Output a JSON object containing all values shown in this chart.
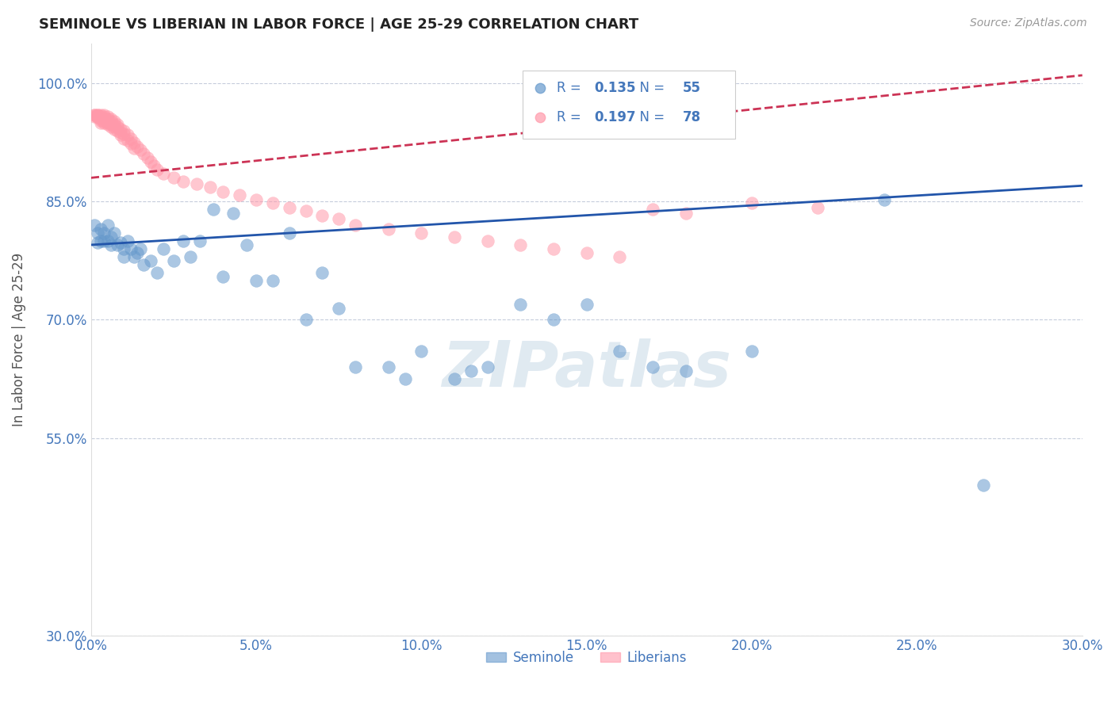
{
  "title": "SEMINOLE VS LIBERIAN IN LABOR FORCE | AGE 25-29 CORRELATION CHART",
  "source": "Source: ZipAtlas.com",
  "ylabel": "In Labor Force | Age 25-29",
  "xlim": [
    0.0,
    0.3
  ],
  "ylim": [
    0.3,
    1.05
  ],
  "xticks": [
    0.0,
    0.05,
    0.1,
    0.15,
    0.2,
    0.25,
    0.3
  ],
  "xticklabels": [
    "0.0%",
    "5.0%",
    "10.0%",
    "15.0%",
    "20.0%",
    "25.0%",
    "30.0%"
  ],
  "yticks": [
    0.3,
    0.55,
    0.7,
    0.85,
    1.0
  ],
  "yticklabels": [
    "30.0%",
    "55.0%",
    "70.0%",
    "85.0%",
    "100.0%"
  ],
  "seminole_color": "#6699cc",
  "liberian_color": "#ff99aa",
  "seminole_R": 0.135,
  "seminole_N": 55,
  "liberian_R": 0.197,
  "liberian_N": 78,
  "trend_blue_color": "#2255aa",
  "trend_pink_color": "#cc3355",
  "watermark_color": "#ccdce8",
  "grid_color": "#c0c8d8",
  "axis_color": "#4477bb",
  "title_color": "#222222",
  "ylabel_color": "#555555",
  "seminole_x": [
    0.001,
    0.002,
    0.002,
    0.003,
    0.003,
    0.004,
    0.004,
    0.005,
    0.005,
    0.006,
    0.006,
    0.007,
    0.008,
    0.009,
    0.01,
    0.01,
    0.011,
    0.012,
    0.013,
    0.014,
    0.015,
    0.016,
    0.018,
    0.02,
    0.022,
    0.025,
    0.028,
    0.03,
    0.033,
    0.037,
    0.04,
    0.043,
    0.047,
    0.05,
    0.055,
    0.06,
    0.065,
    0.07,
    0.075,
    0.08,
    0.09,
    0.095,
    0.1,
    0.11,
    0.115,
    0.12,
    0.13,
    0.14,
    0.15,
    0.16,
    0.17,
    0.18,
    0.2,
    0.24,
    0.27
  ],
  "seminole_y": [
    0.82,
    0.798,
    0.81,
    0.8,
    0.815,
    0.8,
    0.81,
    0.82,
    0.8,
    0.805,
    0.795,
    0.81,
    0.795,
    0.798,
    0.78,
    0.79,
    0.8,
    0.79,
    0.78,
    0.785,
    0.79,
    0.77,
    0.775,
    0.76,
    0.79,
    0.775,
    0.8,
    0.78,
    0.8,
    0.84,
    0.755,
    0.835,
    0.795,
    0.75,
    0.75,
    0.81,
    0.7,
    0.76,
    0.715,
    0.64,
    0.64,
    0.625,
    0.66,
    0.625,
    0.635,
    0.64,
    0.72,
    0.7,
    0.72,
    0.66,
    0.64,
    0.635,
    0.66,
    0.852,
    0.49
  ],
  "liberian_x": [
    0.001,
    0.001,
    0.001,
    0.002,
    0.002,
    0.002,
    0.002,
    0.003,
    0.003,
    0.003,
    0.003,
    0.003,
    0.004,
    0.004,
    0.004,
    0.004,
    0.004,
    0.005,
    0.005,
    0.005,
    0.005,
    0.005,
    0.006,
    0.006,
    0.006,
    0.006,
    0.007,
    0.007,
    0.007,
    0.007,
    0.008,
    0.008,
    0.008,
    0.009,
    0.009,
    0.009,
    0.01,
    0.01,
    0.01,
    0.011,
    0.011,
    0.012,
    0.012,
    0.013,
    0.013,
    0.014,
    0.015,
    0.016,
    0.017,
    0.018,
    0.019,
    0.02,
    0.022,
    0.025,
    0.028,
    0.032,
    0.036,
    0.04,
    0.045,
    0.05,
    0.055,
    0.06,
    0.065,
    0.07,
    0.075,
    0.08,
    0.09,
    0.1,
    0.11,
    0.12,
    0.13,
    0.14,
    0.15,
    0.16,
    0.17,
    0.18,
    0.2,
    0.22
  ],
  "liberian_y": [
    0.96,
    0.96,
    0.958,
    0.96,
    0.96,
    0.958,
    0.957,
    0.96,
    0.958,
    0.955,
    0.953,
    0.95,
    0.96,
    0.958,
    0.955,
    0.952,
    0.95,
    0.958,
    0.955,
    0.952,
    0.95,
    0.948,
    0.955,
    0.952,
    0.948,
    0.945,
    0.952,
    0.948,
    0.945,
    0.942,
    0.948,
    0.945,
    0.94,
    0.942,
    0.938,
    0.935,
    0.94,
    0.936,
    0.93,
    0.935,
    0.928,
    0.93,
    0.924,
    0.925,
    0.918,
    0.92,
    0.915,
    0.91,
    0.905,
    0.9,
    0.895,
    0.89,
    0.885,
    0.88,
    0.875,
    0.872,
    0.868,
    0.862,
    0.858,
    0.852,
    0.848,
    0.842,
    0.838,
    0.832,
    0.828,
    0.82,
    0.815,
    0.81,
    0.805,
    0.8,
    0.795,
    0.79,
    0.785,
    0.78,
    0.84,
    0.835,
    0.848,
    0.842
  ]
}
